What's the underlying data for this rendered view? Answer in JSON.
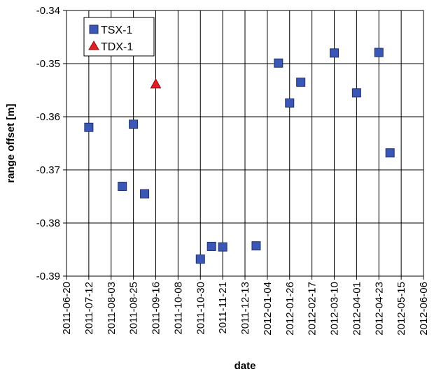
{
  "chart_data": {
    "type": "scatter",
    "xlabel": "date",
    "ylabel": "range offset [m]",
    "xlim": [
      "2011-06-20",
      "2012-06-06"
    ],
    "ylim": [
      -0.39,
      -0.34
    ],
    "x_ticks": [
      "2011-06-20",
      "2011-07-12",
      "2011-08-03",
      "2011-08-25",
      "2011-09-16",
      "2011-10-08",
      "2011-10-30",
      "2011-11-21",
      "2011-12-13",
      "2012-01-04",
      "2012-01-26",
      "2012-02-17",
      "2012-03-10",
      "2012-04-01",
      "2012-04-23",
      "2012-05-15",
      "2012-06-06"
    ],
    "y_ticks": [
      -0.34,
      -0.35,
      -0.36,
      -0.37,
      -0.38,
      -0.39
    ],
    "y_tick_labels": [
      "-0.34",
      "-0.35",
      "-0.36",
      "-0.37",
      "-0.38",
      "-0.39"
    ],
    "grid": "vertical and horizontal major gridlines",
    "legend_position": "top-left",
    "series": [
      {
        "name": "TSX-1",
        "marker": "square",
        "color": "#3a57b5",
        "points": [
          {
            "x": "2011-07-12",
            "y": -0.362
          },
          {
            "x": "2011-08-14",
            "y": -0.3731
          },
          {
            "x": "2011-08-25",
            "y": -0.3614
          },
          {
            "x": "2011-09-05",
            "y": -0.3745
          },
          {
            "x": "2011-10-30",
            "y": -0.3868
          },
          {
            "x": "2011-11-10",
            "y": -0.3844
          },
          {
            "x": "2011-11-21",
            "y": -0.3845
          },
          {
            "x": "2011-12-24",
            "y": -0.3843
          },
          {
            "x": "2012-01-15",
            "y": -0.3499
          },
          {
            "x": "2012-01-26",
            "y": -0.3574
          },
          {
            "x": "2012-02-06",
            "y": -0.3535
          },
          {
            "x": "2012-03-10",
            "y": -0.348
          },
          {
            "x": "2012-04-01",
            "y": -0.3555
          },
          {
            "x": "2012-04-23",
            "y": -0.3479
          },
          {
            "x": "2012-05-04",
            "y": -0.3668
          }
        ]
      },
      {
        "name": "TDX-1",
        "marker": "triangle",
        "color": "#e31e24",
        "points": [
          {
            "x": "2011-09-16",
            "y": -0.3538
          }
        ]
      }
    ]
  }
}
